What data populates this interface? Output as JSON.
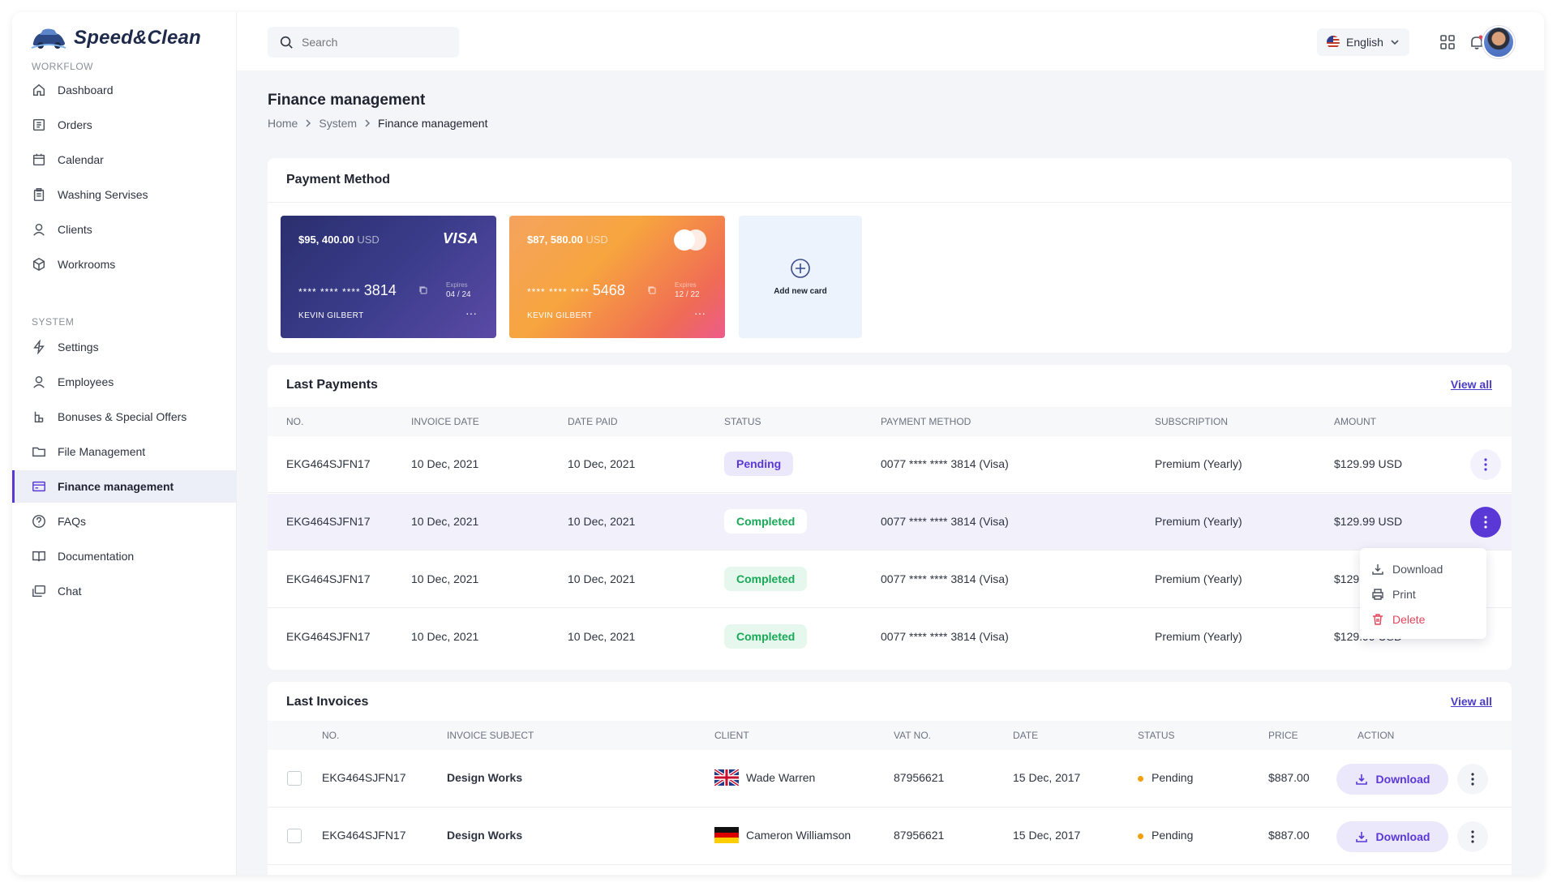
{
  "app": {
    "name": "Speed&Clean"
  },
  "sidebar": {
    "workflow_label": "WORKFLOW",
    "system_label": "SYSTEM",
    "workflow_items": [
      {
        "label": "Dashboard",
        "icon": "home-icon"
      },
      {
        "label": "Orders",
        "icon": "orders-icon"
      },
      {
        "label": "Calendar",
        "icon": "calendar-icon"
      },
      {
        "label": "Washing Servises",
        "icon": "clipboard-icon"
      },
      {
        "label": "Clients",
        "icon": "user-icon"
      },
      {
        "label": "Workrooms",
        "icon": "cube-icon"
      }
    ],
    "system_items": [
      {
        "label": "Settings",
        "icon": "bolt-icon"
      },
      {
        "label": "Employees",
        "icon": "user-icon"
      },
      {
        "label": "Bonuses & Special Offers",
        "icon": "gift-icon"
      },
      {
        "label": "File Management",
        "icon": "folder-icon"
      },
      {
        "label": "Finance management",
        "icon": "credit-card-icon",
        "active": true
      },
      {
        "label": "FAQs",
        "icon": "question-icon"
      },
      {
        "label": "Documentation",
        "icon": "book-icon"
      },
      {
        "label": "Chat",
        "icon": "chat-icon"
      }
    ]
  },
  "topbar": {
    "search_placeholder": "Search",
    "language": "English"
  },
  "page": {
    "title": "Finance management",
    "breadcrumb": [
      "Home",
      "System",
      "Finance management"
    ]
  },
  "payment_method": {
    "title": "Payment Method",
    "cards": [
      {
        "balance": "$95, 400.00",
        "currency": "USD",
        "brand": "VISA",
        "masked": "**** **** ****",
        "last4": "3814",
        "expires_label": "Expires",
        "expires": "04 / 24",
        "holder": "KEVIN GILBERT",
        "menu": "···"
      },
      {
        "balance": "$87, 580.00",
        "currency": "USD",
        "brand": "mastercard",
        "masked": "**** **** ****",
        "last4": "5468",
        "expires_label": "Expires",
        "expires": "12 / 22",
        "holder": "KEVIN GILBERT",
        "menu": "···"
      }
    ],
    "add_card_label": "Add new card"
  },
  "last_payments": {
    "title": "Last Payments",
    "view_all": "View all",
    "columns": [
      "NO.",
      "INVOICE DATE",
      "DATE PAID",
      "STATUS",
      "PAYMENT METHOD",
      "SUBSCRIPTION",
      "AMOUNT"
    ],
    "rows": [
      {
        "no": "EKG464SJFN17",
        "invoice_date": "10 Dec, 2021",
        "date_paid": "10 Dec, 2021",
        "status": "Pending",
        "method": "0077 **** **** 3814 (Visa)",
        "subscription": "Premium (Yearly)",
        "amount": "$129.99 USD"
      },
      {
        "no": "EKG464SJFN17",
        "invoice_date": "10 Dec, 2021",
        "date_paid": "10 Dec, 2021",
        "status": "Completed",
        "method": "0077 **** **** 3814 (Visa)",
        "subscription": "Premium (Yearly)",
        "amount": "$129.99 USD"
      },
      {
        "no": "EKG464SJFN17",
        "invoice_date": "10 Dec, 2021",
        "date_paid": "10 Dec, 2021",
        "status": "Completed",
        "method": "0077 **** **** 3814 (Visa)",
        "subscription": "Premium (Yearly)",
        "amount": "$129.99 USD"
      },
      {
        "no": "EKG464SJFN17",
        "invoice_date": "10 Dec, 2021",
        "date_paid": "10 Dec, 2021",
        "status": "Completed",
        "method": "0077 **** **** 3814 (Visa)",
        "subscription": "Premium (Yearly)",
        "amount": "$129.99 USD"
      }
    ],
    "context_menu": {
      "download": "Download",
      "print": "Print",
      "delete": "Delete"
    }
  },
  "last_invoices": {
    "title": "Last Invoices",
    "view_all": "View all",
    "columns": [
      "NO.",
      "INVOICE SUBJECT",
      "CLIENT",
      "VAT NO.",
      "DATE",
      "STATUS",
      "PRICE",
      "ACTION"
    ],
    "rows": [
      {
        "no": "EKG464SJFN17",
        "subject": "Design Works",
        "client": "Wade Warren",
        "flag": "uk-flag-icon",
        "vat": "87956621",
        "date": "15 Dec, 2017",
        "status": "Pending",
        "price": "$887.00",
        "action": "Download"
      },
      {
        "no": "EKG464SJFN17",
        "subject": "Design Works",
        "client": "Cameron Williamson",
        "flag": "germany-flag-icon",
        "vat": "87956621",
        "date": "15 Dec, 2017",
        "status": "Pending",
        "price": "$887.00",
        "action": "Download"
      }
    ]
  },
  "colors": {
    "accent": "#5a38d6",
    "success": "#18a957",
    "warning": "#f59e0b",
    "danger": "#e0455a"
  }
}
